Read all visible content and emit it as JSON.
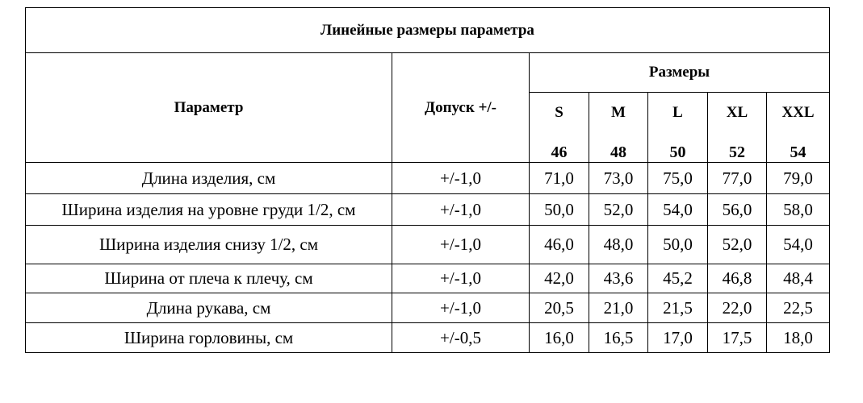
{
  "title": "Линейные размеры параметра",
  "header": {
    "parameter": "Параметр",
    "tolerance": "Допуск +/-",
    "sizes_label": "Размеры",
    "sizes": [
      "S",
      "M",
      "L",
      "XL",
      "XXL"
    ],
    "numbers": [
      "46",
      "48",
      "50",
      "52",
      "54"
    ]
  },
  "rows": [
    [
      "Длина изделия, см",
      "+/-1,0",
      "71,0",
      "73,0",
      "75,0",
      "77,0",
      "79,0"
    ],
    [
      "Ширина изделия на уровне груди 1/2, см",
      "+/-1,0",
      "50,0",
      "52,0",
      "54,0",
      "56,0",
      "58,0"
    ],
    [
      "Ширина изделия снизу 1/2, см",
      "+/-1,0",
      "46,0",
      "48,0",
      "50,0",
      "52,0",
      "54,0"
    ],
    [
      "Ширина от плеча к плечу, см",
      "+/-1,0",
      "42,0",
      "43,6",
      "45,2",
      "46,8",
      "48,4"
    ],
    [
      "Длина рукава, см",
      "+/-1,0",
      "20,5",
      "21,0",
      "21,5",
      "22,0",
      "22,5"
    ],
    [
      "Ширина горловины, см",
      "+/-0,5",
      "16,0",
      "16,5",
      "17,0",
      "17,5",
      "18,0"
    ]
  ]
}
